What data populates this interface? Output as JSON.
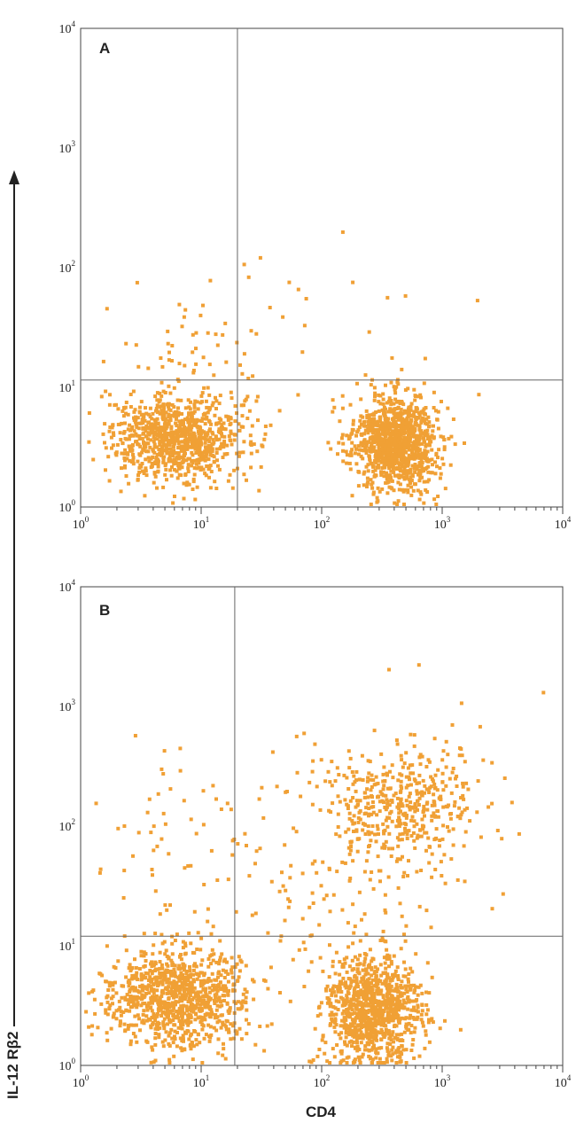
{
  "chart_data": [
    {
      "type": "scatter",
      "panel_label": "A",
      "xscale": "log",
      "yscale": "log",
      "xlim": [
        1,
        10000
      ],
      "ylim": [
        1,
        10000
      ],
      "x_ticks": [
        "10^0",
        "10^1",
        "10^2",
        "10^3",
        "10^4"
      ],
      "y_ticks": [
        "10^0",
        "10^1",
        "10^2",
        "10^3",
        "10^4"
      ],
      "quadrant_gates": {
        "x": 20,
        "y": 11.5
      },
      "point_color": "#f0a035",
      "clusters": [
        {
          "x_center": 6,
          "y_center": 3.8,
          "x_spread": 0.28,
          "y_spread": 0.18,
          "count": 900
        },
        {
          "x_center": 400,
          "y_center": 3.6,
          "x_spread": 0.18,
          "y_spread": 0.2,
          "count": 1100
        },
        {
          "x_center": 10,
          "y_center": 20,
          "x_spread": 0.3,
          "y_spread": 0.2,
          "count": 45
        }
      ],
      "points": [
        [
          1.6,
          47
        ],
        [
          2.3,
          24
        ],
        [
          1.5,
          17
        ],
        [
          7,
          40
        ],
        [
          10,
          50
        ],
        [
          22,
          110
        ],
        [
          24,
          86
        ],
        [
          30,
          125
        ],
        [
          36,
          48
        ],
        [
          46,
          40
        ],
        [
          52,
          78
        ],
        [
          62,
          68
        ],
        [
          70,
          34
        ],
        [
          72,
          57
        ],
        [
          145,
          205
        ],
        [
          175,
          78
        ],
        [
          240,
          30
        ],
        [
          340,
          58
        ],
        [
          480,
          60
        ],
        [
          700,
          18
        ],
        [
          1900,
          55
        ],
        [
          1950,
          9
        ]
      ]
    },
    {
      "type": "scatter",
      "panel_label": "B",
      "xscale": "log",
      "yscale": "log",
      "xlim": [
        1,
        10000
      ],
      "ylim": [
        1,
        10000
      ],
      "x_ticks": [
        "10^0",
        "10^1",
        "10^2",
        "10^3",
        "10^4"
      ],
      "y_ticks": [
        "10^0",
        "10^1",
        "10^2",
        "10^3",
        "10^4"
      ],
      "quadrant_gates": {
        "x": 19,
        "y": 12
      },
      "xlabel": "CD4",
      "ylabel": "IL-12 Rβ2",
      "point_color": "#f0a035",
      "clusters": [
        {
          "x_center": 6,
          "y_center": 3.8,
          "x_spread": 0.3,
          "y_spread": 0.2,
          "count": 1000
        },
        {
          "x_center": 260,
          "y_center": 3.0,
          "x_spread": 0.2,
          "y_spread": 0.22,
          "count": 1000
        },
        {
          "x_center": 500,
          "y_center": 170,
          "x_spread": 0.3,
          "y_spread": 0.22,
          "count": 420
        },
        {
          "x_center": 120,
          "y_center": 40,
          "x_spread": 0.45,
          "y_spread": 0.4,
          "count": 150
        },
        {
          "x_center": 7,
          "y_center": 60,
          "x_spread": 0.28,
          "y_spread": 0.45,
          "count": 55
        }
      ],
      "points": [
        [
          1.3,
          160
        ],
        [
          1.4,
          42
        ],
        [
          2.2,
          26
        ],
        [
          4.8,
          440
        ],
        [
          6.5,
          300
        ],
        [
          16,
          160
        ],
        [
          60,
          580
        ],
        [
          85,
          500
        ],
        [
          350,
          2100
        ],
        [
          620,
          2300
        ],
        [
          1400,
          1100
        ],
        [
          2000,
          700
        ],
        [
          3200,
          260
        ],
        [
          3100,
          28
        ],
        [
          6700,
          1350
        ],
        [
          2800,
          95
        ],
        [
          1150,
          55
        ],
        [
          38,
          430
        ]
      ]
    }
  ]
}
